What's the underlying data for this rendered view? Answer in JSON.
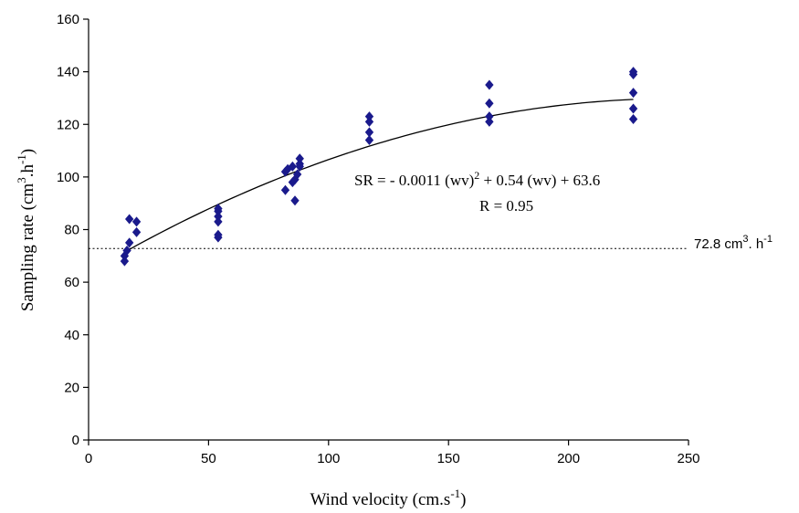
{
  "chart_data": {
    "type": "scatter",
    "xlabel": {
      "main": "Wind velocity (cm.s",
      "sup": "-1",
      "close": ")"
    },
    "ylabel": {
      "main": "Sampling rate (cm",
      "sup1": "3",
      "mid": ".h",
      "sup2": "-1",
      "close": ")"
    },
    "xlim": [
      0,
      250
    ],
    "ylim": [
      0,
      160
    ],
    "xticks": [
      0,
      50,
      100,
      150,
      200,
      250
    ],
    "yticks": [
      0,
      20,
      40,
      60,
      80,
      100,
      120,
      140,
      160
    ],
    "grid": false,
    "legend": "none",
    "marker_color": "#1a1a8c",
    "series": [
      {
        "marker": "diamond",
        "points": [
          [
            15,
            68
          ],
          [
            15,
            70
          ],
          [
            16,
            72
          ],
          [
            17,
            75
          ],
          [
            17,
            84
          ],
          [
            20,
            79
          ],
          [
            20,
            83
          ],
          [
            54,
            77
          ],
          [
            54,
            78
          ],
          [
            54,
            83
          ],
          [
            54,
            85
          ],
          [
            54,
            87
          ],
          [
            54,
            88
          ],
          [
            82,
            95
          ],
          [
            82,
            102
          ],
          [
            83,
            103
          ],
          [
            85,
            104
          ],
          [
            85,
            98
          ],
          [
            86,
            99
          ],
          [
            86,
            91
          ],
          [
            87,
            101
          ],
          [
            88,
            104
          ],
          [
            88,
            105
          ],
          [
            88,
            107
          ],
          [
            117,
            114
          ],
          [
            117,
            117
          ],
          [
            117,
            121
          ],
          [
            117,
            123
          ],
          [
            167,
            121
          ],
          [
            167,
            123
          ],
          [
            167,
            128
          ],
          [
            167,
            135
          ],
          [
            227,
            122
          ],
          [
            227,
            126
          ],
          [
            227,
            132
          ],
          [
            227,
            139
          ],
          [
            227,
            140
          ]
        ]
      }
    ],
    "fit_curve": {
      "a": -0.0011,
      "b": 0.54,
      "c": 63.6,
      "x_range": [
        15,
        227
      ]
    },
    "reference_line": {
      "y": 72.8,
      "style": "dotted",
      "label_main": "72.8 cm",
      "label_sup1": "3",
      "label_mid": ". h",
      "label_sup2": "-1"
    },
    "annotation": {
      "eq_a": "SR = - 0.0011 (wv)",
      "eq_sup": "2",
      "eq_b": " + 0.54 (wv) + 63.6",
      "r": "R = 0.95"
    }
  }
}
